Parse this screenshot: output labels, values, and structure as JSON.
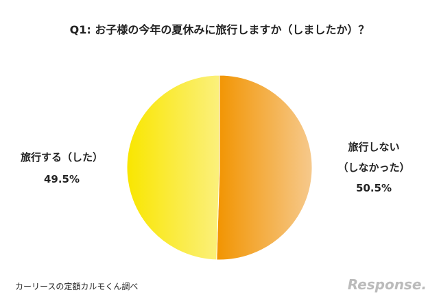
{
  "chart_data": {
    "type": "pie",
    "title": "Q1: お子様の今年の夏休みに旅行しますか（しましたか）？",
    "categories": [
      "旅行しない\n（しなかった）",
      "旅行する（した）"
    ],
    "values": [
      50.5,
      49.5
    ],
    "value_labels": [
      "50.5%",
      "49.5%"
    ],
    "gradients": [
      [
        "#f29400",
        "#f6c98c"
      ],
      [
        "#f9e600",
        "#fbf07c"
      ]
    ],
    "source": "カーリースの定額カルモくん調べ",
    "watermark": "Response."
  }
}
